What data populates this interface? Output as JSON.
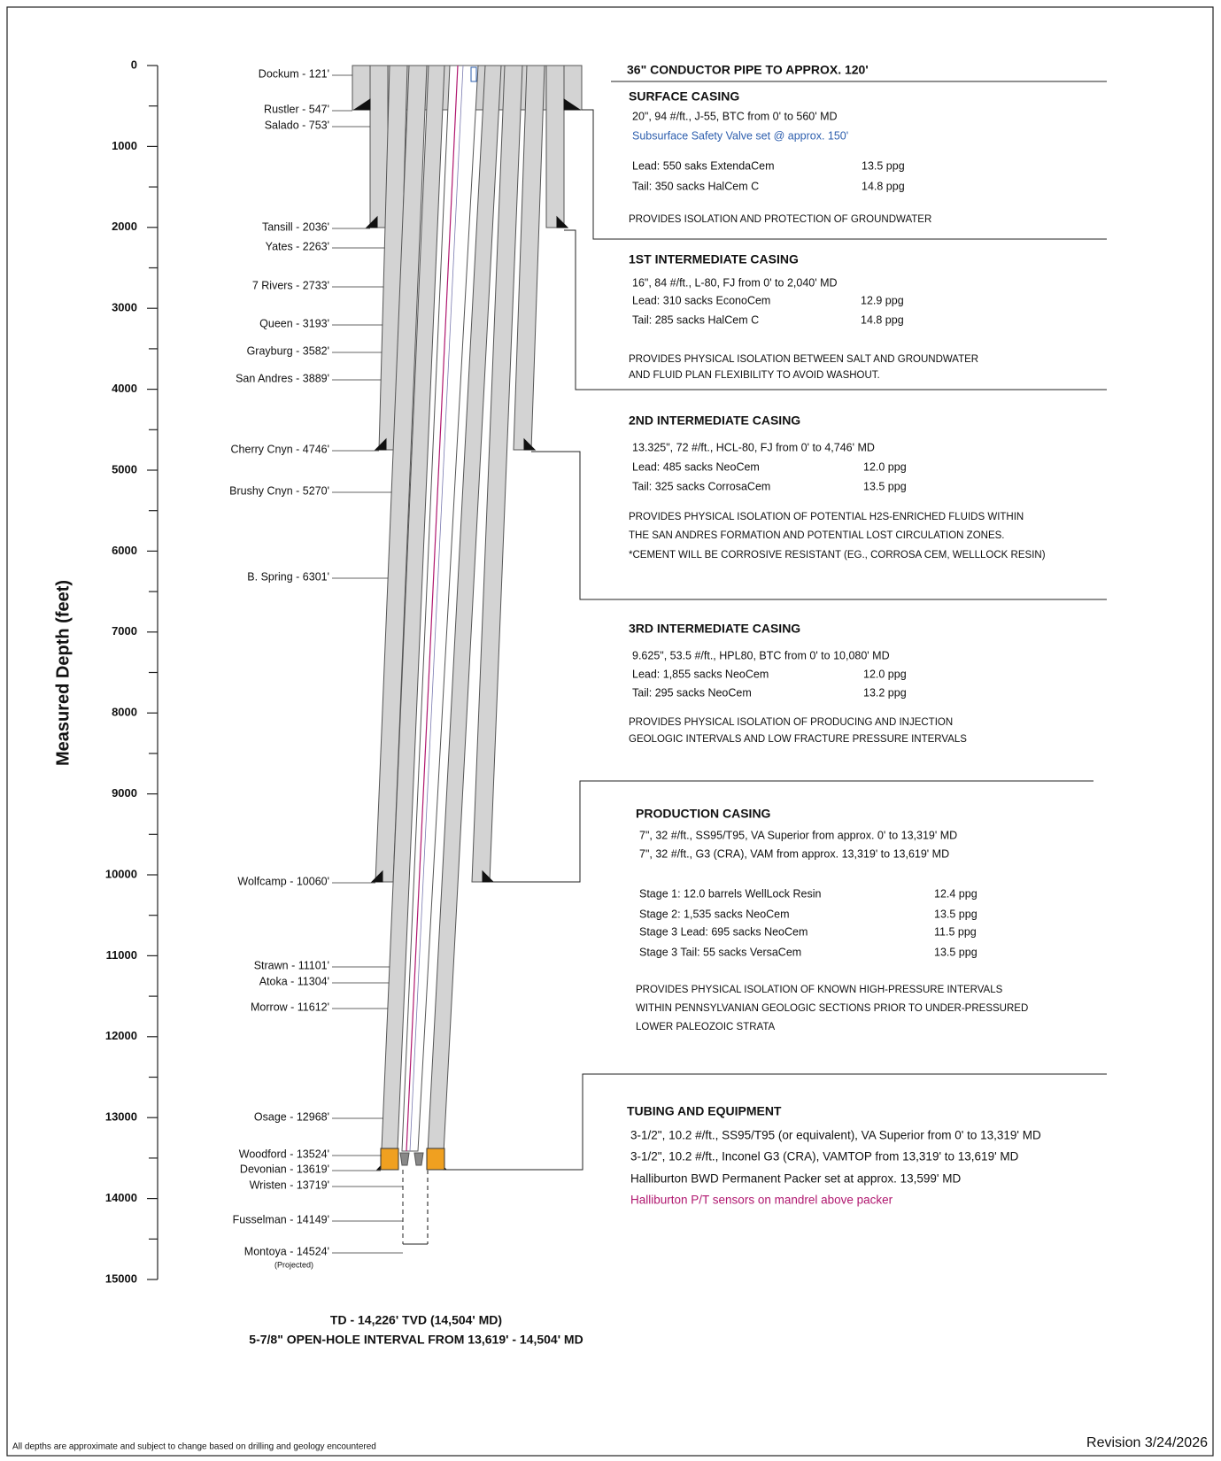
{
  "axis": {
    "label": "Measured Depth (feet)",
    "ticks": [
      0,
      1000,
      2000,
      3000,
      4000,
      5000,
      6000,
      7000,
      8000,
      9000,
      10000,
      11000,
      12000,
      13000,
      14000,
      15000
    ]
  },
  "formations": [
    "Dockum - 121'",
    "Rustler - 547'",
    "Salado - 753'",
    "Tansill - 2036'",
    "Yates - 2263'",
    "7 Rivers - 2733'",
    "Queen - 3193'",
    "Grayburg - 3582'",
    "San Andres - 3889'",
    "Cherry Cnyn - 4746'",
    "Brushy Cnyn - 5270'",
    "B. Spring - 6301'",
    "Wolfcamp - 10060'",
    "Strawn - 11101'",
    "Atoka - 11304'",
    "Morrow - 11612'",
    "Osage - 12968'",
    "Woodford - 13524'",
    "Devonian - 13619'",
    "Wristen - 13719'",
    "Fusselman - 14149'",
    "Montoya - 14524'"
  ],
  "formation_note": "(Projected)",
  "sections": [
    {
      "title": "36\" CONDUCTOR PIPE TO APPROX. 120'",
      "details": [],
      "notes": []
    },
    {
      "title": "SURFACE CASING",
      "details": [
        {
          "text": "20\", 94 #/ft., J-55, BTC from 0' to 560' MD"
        },
        {
          "text": "Subsurface Safety Valve set @ approx. 150'",
          "color": "#2e5fae"
        },
        {
          "text": "Lead: 550 saks ExtendaCem",
          "density": "13.5 ppg"
        },
        {
          "text": "Tail:  350 sacks HalCem C",
          "density": "14.8 ppg"
        }
      ],
      "notes": [
        "PROVIDES ISOLATION AND PROTECTION OF GROUNDWATER"
      ]
    },
    {
      "title": "1ST INTERMEDIATE CASING",
      "details": [
        {
          "text": "16\", 84 #/ft., L-80, FJ from 0' to 2,040' MD"
        },
        {
          "text": "Lead: 310 sacks EconoCem",
          "density": "12.9 ppg"
        },
        {
          "text": "Tail:  285 sacks HalCem C",
          "density": "14.8 ppg"
        }
      ],
      "notes": [
        "PROVIDES PHYSICAL ISOLATION BETWEEN SALT AND GROUNDWATER",
        "AND FLUID PLAN FLEXIBILITY TO AVOID WASHOUT."
      ]
    },
    {
      "title": "2ND INTERMEDIATE CASING",
      "details": [
        {
          "text": "13.325\", 72 #/ft., HCL-80, FJ from 0' to 4,746' MD"
        },
        {
          "text": "Lead: 485 sacks NeoCem",
          "density": "12.0 ppg"
        },
        {
          "text": "Tail:  325 sacks CorrosaCem",
          "density": "13.5 ppg"
        }
      ],
      "notes": [
        "PROVIDES PHYSICAL ISOLATION OF POTENTIAL H2S-ENRICHED FLUIDS WITHIN",
        "THE SAN ANDRES FORMATION AND POTENTIAL LOST CIRCULATION ZONES.",
        "*CEMENT WILL BE CORROSIVE RESISTANT (EG., CORROSA CEM, WELLLOCK RESIN)"
      ]
    },
    {
      "title": "3RD INTERMEDIATE CASING",
      "details": [
        {
          "text": "9.625\", 53.5 #/ft., HPL80, BTC from 0' to 10,080' MD"
        },
        {
          "text": "Lead: 1,855 sacks NeoCem",
          "density": "12.0 ppg"
        },
        {
          "text": "Tail: 295 sacks NeoCem",
          "density": "13.2 ppg"
        }
      ],
      "notes": [
        "PROVIDES PHYSICAL ISOLATION OF PRODUCING AND INJECTION",
        "GEOLOGIC INTERVALS AND LOW FRACTURE PRESSURE INTERVALS"
      ]
    },
    {
      "title": "PRODUCTION CASING",
      "details": [
        {
          "text": "7\", 32 #/ft., SS95/T95, VA Superior from approx. 0' to 13,319' MD"
        },
        {
          "text": "7\", 32 #/ft., G3 (CRA), VAM from approx. 13,319' to 13,619' MD"
        },
        {
          "text": "Stage 1:  12.0 barrels WellLock Resin",
          "density": "12.4 ppg"
        },
        {
          "text": "Stage 2:  1,535 sacks NeoCem",
          "density": "13.5 ppg"
        },
        {
          "text": "Stage 3 Lead: 695 sacks NeoCem",
          "density": "11.5 ppg"
        },
        {
          "text": "Stage 3 Tail: 55 sacks VersaCem",
          "density": "13.5 ppg"
        }
      ],
      "notes": [
        "PROVIDES PHYSICAL ISOLATION OF KNOWN HIGH-PRESSURE INTERVALS",
        "WITHIN PENNSYLVANIAN GEOLOGIC SECTIONS PRIOR TO UNDER-PRESSURED",
        "LOWER PALEOZOIC STRATA"
      ]
    },
    {
      "title": "TUBING AND EQUIPMENT",
      "details": [
        {
          "text": "3-1/2\", 10.2 #/ft., SS95/T95 (or equivalent), VA Superior from 0' to 13,319' MD"
        },
        {
          "text": "3-1/2\", 10.2 #/ft., Inconel G3 (CRA), VAMTOP from 13,319' to 13,619' MD"
        },
        {
          "text": "Halliburton BWD Permanent Packer set at approx. 13,599' MD"
        },
        {
          "text": "Halliburton P/T sensors on mandrel above packer",
          "color": "#b0176f"
        }
      ],
      "notes": []
    }
  ],
  "footer": {
    "td": "TD - 14,226' TVD (14,504' MD)",
    "open_hole": "5-7/8\" OPEN-HOLE INTERVAL FROM 13,619' - 14,504' MD",
    "disclaimer": "All depths are approximate and subject to change based on drilling and geology encountered",
    "revision": "Revision 3/24/2026"
  }
}
